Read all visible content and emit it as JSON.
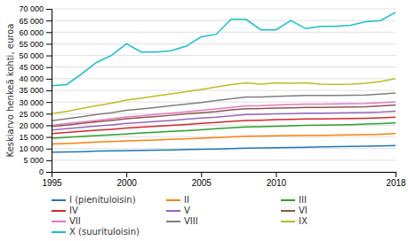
{
  "chart_data": {
    "type": "line",
    "ylabel": "Keskiarvo henkeä kohti, euroa",
    "x": [
      1995,
      1996,
      1997,
      1998,
      1999,
      2000,
      2001,
      2002,
      2003,
      2004,
      2005,
      2006,
      2007,
      2008,
      2009,
      2010,
      2011,
      2012,
      2013,
      2014,
      2015,
      2016,
      2017,
      2018
    ],
    "xlim": [
      1995,
      2018
    ],
    "xticks": [
      1995,
      2000,
      2005,
      2010,
      2018
    ],
    "ylim": [
      0,
      70000
    ],
    "yticks": [
      0,
      {
        "value": 5000,
        "label": "5 000"
      },
      {
        "value": 10000,
        "label": "10 000"
      },
      {
        "value": 15000,
        "label": "15 000"
      },
      {
        "value": 20000,
        "label": "20 000"
      },
      {
        "value": 25000,
        "label": "25 000"
      },
      {
        "value": 30000,
        "label": "30 000"
      },
      {
        "value": 35000,
        "label": "35 000"
      },
      {
        "value": 40000,
        "label": "40 000"
      },
      {
        "value": 45000,
        "label": "45 000"
      },
      {
        "value": 50000,
        "label": "50 000"
      },
      {
        "value": 55000,
        "label": "55 000"
      },
      {
        "value": 60000,
        "label": "60 000"
      },
      {
        "value": 65000,
        "label": "65 000"
      },
      {
        "value": 70000,
        "label": "70 000"
      }
    ],
    "grid": true,
    "legend": "bottom",
    "series": [
      {
        "name": "I (pienituloisin)",
        "values": [
          8500,
          8600,
          8700,
          8900,
          9000,
          9100,
          9200,
          9300,
          9400,
          9600,
          9700,
          9800,
          10000,
          10200,
          10300,
          10400,
          10500,
          10600,
          10700,
          10800,
          10900,
          11000,
          11100,
          11300
        ]
      },
      {
        "name": "II",
        "values": [
          12000,
          12200,
          12500,
          12800,
          13000,
          13300,
          13500,
          13700,
          14000,
          14200,
          14500,
          14700,
          15000,
          15300,
          15400,
          15500,
          15600,
          15700,
          15700,
          15800,
          15900,
          16000,
          16200,
          16500
        ]
      },
      {
        "name": "III",
        "values": [
          14500,
          14800,
          15200,
          15600,
          15900,
          16300,
          16700,
          17000,
          17400,
          17700,
          18100,
          18500,
          18900,
          19300,
          19400,
          19600,
          19800,
          20000,
          20100,
          20200,
          20300,
          20500,
          20700,
          21000
        ]
      },
      {
        "name": "IV",
        "values": [
          16500,
          16900,
          17400,
          17900,
          18300,
          18800,
          19200,
          19600,
          20000,
          20400,
          20800,
          21200,
          21700,
          22100,
          22200,
          22400,
          22500,
          22700,
          22700,
          22800,
          22900,
          23000,
          23200,
          23500
        ]
      },
      {
        "name": "V",
        "values": [
          18000,
          18500,
          19100,
          19700,
          20200,
          20800,
          21200,
          21700,
          22100,
          22600,
          23100,
          23500,
          24100,
          24600,
          24700,
          24900,
          25000,
          25200,
          25200,
          25300,
          25400,
          25500,
          25700,
          26100
        ]
      },
      {
        "name": "VI",
        "values": [
          19500,
          20100,
          20800,
          21500,
          22100,
          22800,
          23300,
          23800,
          24300,
          24900,
          25400,
          25900,
          26600,
          27100,
          27200,
          27400,
          27500,
          27700,
          27700,
          27800,
          27900,
          28000,
          28300,
          28700
        ]
      },
      {
        "name": "VII",
        "values": [
          20000,
          20700,
          21400,
          22100,
          22800,
          23600,
          24100,
          24700,
          25200,
          25800,
          26400,
          27000,
          27700,
          28300,
          28400,
          28700,
          28900,
          29100,
          29100,
          29200,
          29300,
          29400,
          29700,
          30100
        ]
      },
      {
        "name": "VIII",
        "values": [
          22000,
          22800,
          23700,
          24600,
          25400,
          26400,
          27000,
          27700,
          28400,
          29100,
          29800,
          30600,
          31400,
          32100,
          32100,
          32400,
          32600,
          32800,
          32800,
          32800,
          32900,
          33000,
          33400,
          33900
        ]
      },
      {
        "name": "IX",
        "values": [
          25000,
          26000,
          27200,
          28400,
          29500,
          30800,
          31700,
          32600,
          33500,
          34400,
          35400,
          36400,
          37500,
          38200,
          37700,
          38200,
          38000,
          38200,
          37700,
          37600,
          37700,
          38000,
          38800,
          40000
        ]
      },
      {
        "name": "X (suurituloisin)",
        "values": [
          37000,
          37500,
          42000,
          47000,
          50000,
          55000,
          51500,
          51500,
          52000,
          54000,
          58000,
          59000,
          65500,
          65500,
          61000,
          61000,
          65000,
          61500,
          62500,
          62500,
          63000,
          64500,
          65000,
          68500
        ]
      }
    ]
  }
}
